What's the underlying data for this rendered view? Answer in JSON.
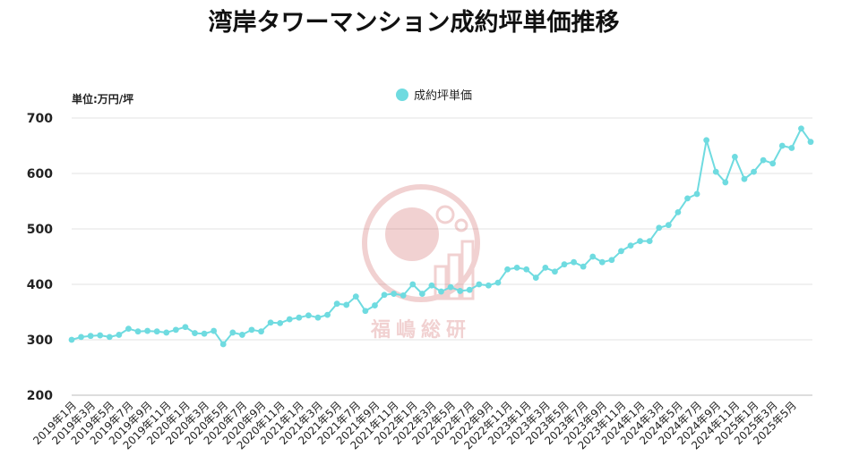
{
  "chart_data": {
    "type": "line",
    "title": "湾岸タワーマンション成約坪単価推移",
    "unit_label": "単位:万円/坪",
    "ylabel": "",
    "xlabel": "",
    "ylim": [
      200,
      700
    ],
    "yticks": [
      200,
      300,
      400,
      500,
      600,
      700
    ],
    "grid": true,
    "legend_position": "top-center",
    "x_tick_labels": [
      "2019年1月",
      "2019年3月",
      "2019年5月",
      "2019年7月",
      "2019年9月",
      "2019年11月",
      "2020年1月",
      "2020年3月",
      "2020年5月",
      "2020年7月",
      "2020年9月",
      "2020年11月",
      "2021年1月",
      "2021年3月",
      "2021年5月",
      "2021年7月",
      "2021年9月",
      "2021年11月",
      "2022年1月",
      "2022年3月",
      "2022年5月",
      "2022年7月",
      "2022年9月",
      "2022年11月",
      "2023年1月",
      "2023年3月",
      "2023年5月",
      "2023年7月",
      "2023年9月",
      "2023年11月",
      "2024年1月",
      "2024年3月",
      "2024年5月",
      "2024年7月",
      "2024年9月",
      "2024年11月",
      "2025年1月",
      "2025年3月",
      "2025年5月"
    ],
    "series": [
      {
        "name": "成約坪単価",
        "color": "#6fdbe0",
        "start": "2019-01",
        "frequency": "monthly",
        "values": [
          300,
          305,
          307,
          308,
          305,
          309,
          320,
          315,
          316,
          315,
          313,
          318,
          323,
          312,
          311,
          316,
          292,
          313,
          309,
          318,
          315,
          331,
          330,
          337,
          340,
          344,
          340,
          345,
          365,
          363,
          378,
          352,
          362,
          381,
          383,
          380,
          400,
          383,
          398,
          387,
          395,
          388,
          390,
          400,
          398,
          403,
          427,
          430,
          427,
          412,
          430,
          423,
          436,
          440,
          432,
          450,
          440,
          444,
          460,
          470,
          478,
          478,
          502,
          507,
          530,
          555,
          563,
          660,
          603,
          584,
          630,
          590,
          603,
          624,
          618,
          650,
          646,
          681,
          657
        ]
      }
    ]
  },
  "watermark": {
    "text": "福嶋総研",
    "color": "#c94b4b"
  }
}
